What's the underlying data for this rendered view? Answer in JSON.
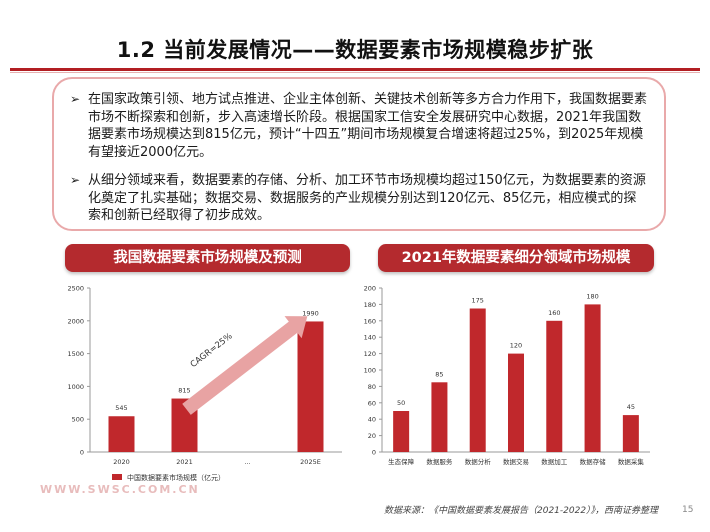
{
  "title": "1.2 当前发展情况——数据要素市场规模稳步扩张",
  "bullets": [
    {
      "arrow": "➢",
      "text": "在国家政策引领、地方试点推进、企业主体创新、关键技术创新等多方合力作用下，我国数据要素市场不断探索和创新，步入高速增长阶段。根据国家工信安全发展研究中心数据，2021年我国数据要素市场规模达到815亿元，预计“十四五”期间市场规模复合增速将超过25%，到2025年规模有望接近2000亿元。"
    },
    {
      "arrow": "➢",
      "text": "从细分领域来看，数据要素的存储、分析、加工环节市场规模均超过150亿元，为数据要素的资源化奠定了扎实基础；数据交易、数据服务的产业规模分别达到120亿元、85亿元，相应模式的探索和创新已经取得了初步成效。"
    }
  ],
  "left_banner": "我国数据要素市场规模及预测",
  "right_banner": "2021年数据要素细分领域市场规模",
  "watermark": "WWW.SWSC.COM.CN",
  "source": "数据来源：《中国数据要素发展报告（2021-2022）》，西南证券整理",
  "page_number": "15",
  "colors": {
    "accent": "#b42a2e",
    "bar": "#c0282c",
    "arrow": "#e8a3a3"
  },
  "chart_data": [
    {
      "type": "bar",
      "categories": [
        "2020",
        "2021",
        "…",
        "2025E"
      ],
      "values": [
        545,
        815,
        null,
        1990
      ],
      "data_labels": [
        "545",
        "815",
        "",
        "1990"
      ],
      "legend": "中国数据要素市场规模（亿元）",
      "annotation": "CAGR=25%",
      "ylim": [
        0,
        2500
      ],
      "yticks": [
        0,
        500,
        1000,
        1500,
        2000,
        2500
      ],
      "grid": false,
      "legend_position": "bottom"
    },
    {
      "type": "bar",
      "categories": [
        "生态保障",
        "数据服务",
        "数据分析",
        "数据交易",
        "数据加工",
        "数据存储",
        "数据采集"
      ],
      "values": [
        50,
        85,
        175,
        120,
        160,
        180,
        45
      ],
      "ylim": [
        0,
        200
      ],
      "yticks": [
        0,
        20,
        40,
        60,
        80,
        100,
        120,
        140,
        160,
        180,
        200
      ],
      "grid": false
    }
  ]
}
